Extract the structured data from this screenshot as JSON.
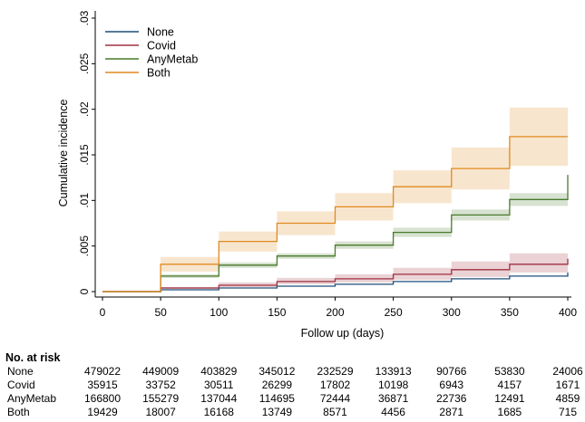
{
  "chart_data": {
    "type": "line",
    "xlabel": "Follow up (days)",
    "ylabel": "Cumulative incidence",
    "xlim": [
      0,
      400
    ],
    "ylim": [
      0,
      0.03
    ],
    "x_ticks": [
      0,
      50,
      100,
      150,
      200,
      250,
      300,
      350,
      400
    ],
    "x_tick_labels": [
      "0",
      "50",
      "100",
      "150",
      "200",
      "250",
      "300",
      "350",
      "400"
    ],
    "y_ticks": [
      0,
      0.005,
      0.01,
      0.015,
      0.02,
      0.025,
      0.03
    ],
    "y_tick_labels": [
      "0",
      ".005",
      ".01",
      ".015",
      ".02",
      ".025",
      ".03"
    ],
    "grid": false,
    "legend_position": "top-left",
    "series": [
      {
        "name": "None",
        "color": "#1f4e79",
        "x": [
          0,
          50,
          100,
          150,
          200,
          250,
          300,
          350,
          400
        ],
        "y": [
          0,
          0.0002,
          0.0004,
          0.0006,
          0.0008,
          0.0011,
          0.0014,
          0.0017,
          0.0021
        ],
        "lower": [
          0,
          0.0002,
          0.0004,
          0.0006,
          0.0008,
          0.0011,
          0.0014,
          0.0017,
          0.002
        ],
        "upper": [
          0,
          0.0002,
          0.0004,
          0.0006,
          0.0008,
          0.0011,
          0.0014,
          0.0017,
          0.0022
        ]
      },
      {
        "name": "Covid",
        "color": "#a03040",
        "x": [
          0,
          50,
          100,
          150,
          200,
          250,
          300,
          350,
          400
        ],
        "y": [
          0,
          0.0004,
          0.0007,
          0.0011,
          0.0014,
          0.0019,
          0.0024,
          0.003,
          0.0036
        ],
        "lower": [
          0,
          0.0003,
          0.0005,
          0.0008,
          0.001,
          0.0013,
          0.0016,
          0.0021,
          0.0025
        ],
        "upper": [
          0,
          0.0005,
          0.001,
          0.0015,
          0.0019,
          0.0026,
          0.0033,
          0.0042,
          0.005
        ]
      },
      {
        "name": "AnyMetab",
        "color": "#4a7a2c",
        "x": [
          0,
          50,
          100,
          150,
          200,
          250,
          300,
          350,
          400
        ],
        "y": [
          0,
          0.0017,
          0.0029,
          0.0039,
          0.0051,
          0.0065,
          0.0084,
          0.0101,
          0.0128
        ],
        "lower": [
          0,
          0.0015,
          0.0026,
          0.0036,
          0.0047,
          0.006,
          0.0078,
          0.0094,
          0.0118
        ],
        "upper": [
          0,
          0.0019,
          0.0032,
          0.0042,
          0.0055,
          0.007,
          0.009,
          0.0108,
          0.0138
        ]
      },
      {
        "name": "Both",
        "color": "#e08a1e",
        "x": [
          0,
          50,
          100,
          150,
          200,
          250,
          300,
          350,
          400
        ],
        "y": [
          0,
          0.003,
          0.0055,
          0.0075,
          0.0093,
          0.0115,
          0.0135,
          0.017,
          0.017
        ],
        "lower": [
          0,
          0.0022,
          0.0044,
          0.0062,
          0.0078,
          0.0097,
          0.0112,
          0.0138,
          0.0138
        ],
        "upper": [
          0,
          0.0038,
          0.0066,
          0.0088,
          0.0108,
          0.0133,
          0.0158,
          0.0202,
          0.0202
        ]
      }
    ]
  },
  "risk_table": {
    "title": "No. at risk",
    "rows": [
      {
        "label": "None",
        "values": [
          "479022",
          "449009",
          "403829",
          "345012",
          "232529",
          "133913",
          "90766",
          "53830",
          "24006"
        ]
      },
      {
        "label": "Covid",
        "values": [
          "35915",
          "33752",
          "30511",
          "26299",
          "17802",
          "10198",
          "6943",
          "4157",
          "1671"
        ]
      },
      {
        "label": "AnyMetab",
        "values": [
          "166800",
          "155279",
          "137044",
          "114695",
          "72444",
          "36871",
          "22736",
          "12491",
          "4859"
        ]
      },
      {
        "label": "Both",
        "values": [
          "19429",
          "18007",
          "16168",
          "13749",
          "8571",
          "4456",
          "2871",
          "1685",
          "715"
        ]
      }
    ]
  }
}
